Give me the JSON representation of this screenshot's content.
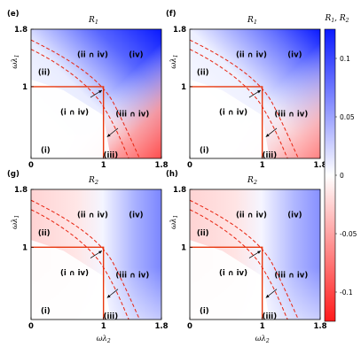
{
  "colors": {
    "negative": "#ff1a1a",
    "zero": "#ffffff",
    "positive": "#0a1aff",
    "boundary_solid": "#e8380f",
    "boundary_dashed": "#e8230f",
    "arrow": "#000000"
  },
  "colorbar": {
    "title": "R1, R2",
    "ticks": [
      "0.1",
      "0.05",
      "0",
      "-0.05",
      "-0.1"
    ],
    "tick_values": [
      0.1,
      0.05,
      0,
      -0.05,
      -0.1
    ],
    "range": [
      -0.125,
      0.125
    ]
  },
  "chart_data": [
    {
      "type": "heatmap",
      "panel": "(e)",
      "title": "R1",
      "xlabel": "",
      "ylabel": "ωλ1",
      "xticks": [
        "0",
        "1",
        "1.8"
      ],
      "yticks": [
        "1.8",
        "1"
      ],
      "xlim": [
        0,
        1.8
      ],
      "ylim": [
        0,
        1.8
      ],
      "field": "R1 positive (blue) toward upper-left, negative (red) toward lower-right of region (iii)",
      "regions": [
        "(i)",
        "(ii)",
        "(iii)",
        "(iv)",
        "(ii ∩ iv)",
        "(i ∩ iv)",
        "(iii ∩ iv)"
      ]
    },
    {
      "type": "heatmap",
      "panel": "(f)",
      "title": "R1",
      "xlabel": "",
      "ylabel": "ωλ1",
      "xticks": [
        "0",
        "1",
        "1.8"
      ],
      "yticks": [
        "1.8",
        "1"
      ],
      "xlim": [
        0,
        1.8
      ],
      "ylim": [
        0,
        1.8
      ],
      "regions": [
        "(i)",
        "(ii)",
        "(iii)",
        "(iv)",
        "(ii ∩ iv)",
        "(i ∩ iv)",
        "(iii ∩ iv)"
      ]
    },
    {
      "type": "heatmap",
      "panel": "(g)",
      "title": "R2",
      "xlabel": "ωλ2",
      "ylabel": "ωλ1",
      "xticks": [
        "0",
        "1",
        "1.8"
      ],
      "yticks": [
        "1.8",
        "1"
      ],
      "xlim": [
        0,
        1.8
      ],
      "ylim": [
        0,
        1.8
      ],
      "regions": [
        "(i)",
        "(ii)",
        "(iii)",
        "(iv)",
        "(ii ∩ iv)",
        "(i ∩ iv)",
        "(iii ∩ iv)"
      ]
    },
    {
      "type": "heatmap",
      "panel": "(h)",
      "title": "R2",
      "xlabel": "ωλ2",
      "ylabel": "ωλ1",
      "xticks": [
        "0",
        "1",
        "1.8"
      ],
      "yticks": [
        "1.8",
        "1"
      ],
      "xlim": [
        0,
        1.8
      ],
      "ylim": [
        0,
        1.8
      ],
      "regions": [
        "(i)",
        "(ii)",
        "(iii)",
        "(iv)",
        "(ii ∩ iv)",
        "(i ∩ iv)",
        "(iii ∩ iv)"
      ]
    }
  ]
}
